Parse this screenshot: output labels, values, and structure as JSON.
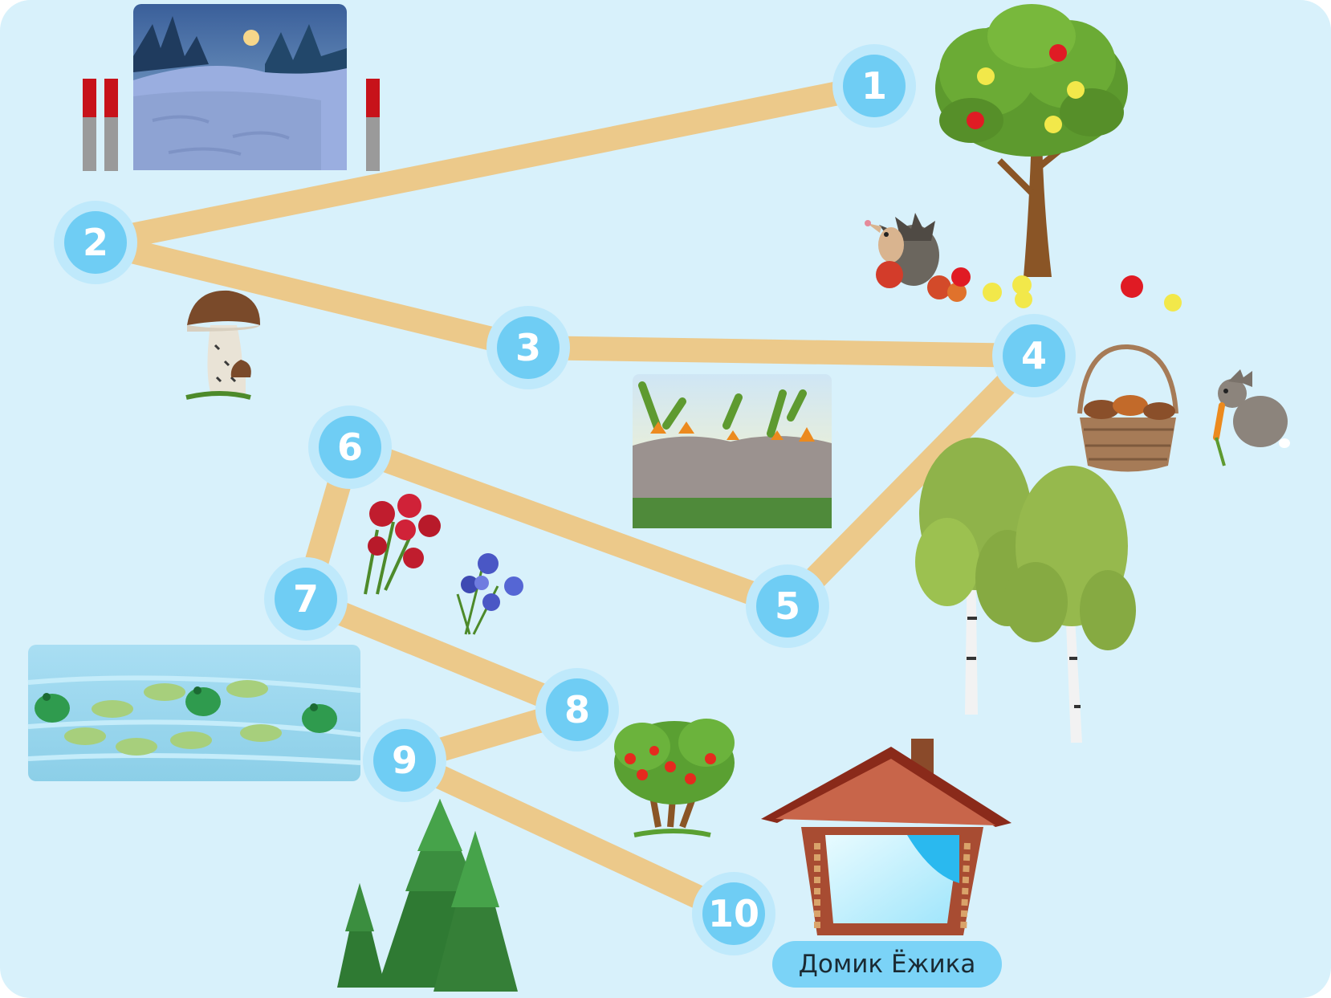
{
  "stations": [
    {
      "number": "1"
    },
    {
      "number": "2"
    },
    {
      "number": "3"
    },
    {
      "number": "4"
    },
    {
      "number": "5"
    },
    {
      "number": "6"
    },
    {
      "number": "7"
    },
    {
      "number": "8"
    },
    {
      "number": "9"
    },
    {
      "number": "10"
    }
  ],
  "house": {
    "label": "Домик Ёжика"
  },
  "colors": {
    "background": "#d8f1fb",
    "path": "#ecc98a",
    "station_fill": "#6fcdf4",
    "station_ring": "#bfe9fb",
    "label_fill": "#7bd3f7"
  },
  "decorations": [
    "night-forest-gate-picture",
    "apple-tree-icon",
    "hedgehog-with-apples-icon",
    "mushroom-icon",
    "carrot-garden-picture",
    "mushroom-basket-icon",
    "hare-with-carrot-icon",
    "birch-trees-icon",
    "red-carnations-icon",
    "blue-cornflowers-icon",
    "frog-pond-picture",
    "rowan-bush-icon",
    "fir-trees-icon",
    "hedgehog-house-icon"
  ]
}
